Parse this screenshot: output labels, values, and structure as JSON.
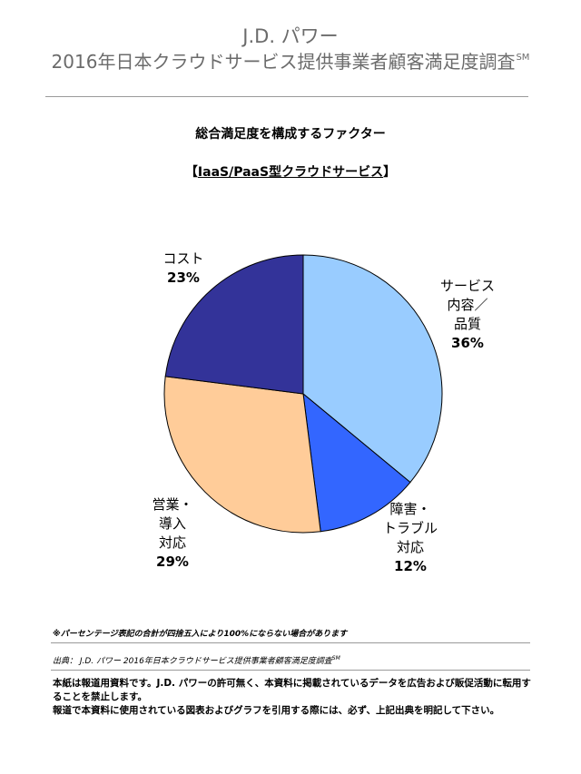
{
  "header": {
    "brand": "J.D. パワー",
    "title": "2016年日本クラウドサービス提供事業者顧客満足度調査",
    "title_mark": "SM"
  },
  "chart_heading": "総合満足度を構成するファクター",
  "chart_subheading": {
    "open": "【",
    "text": "IaaS/PaaS型クラウドサービス",
    "close": "】"
  },
  "chart_data": {
    "type": "pie",
    "title": "",
    "start_angle_deg": 0,
    "direction": "clockwise",
    "slices": [
      {
        "label": "サービス\n内容／\n品質",
        "value": 36,
        "value_label": "36%",
        "color": "#99ccff"
      },
      {
        "label": "障害・\nトラブル\n対応",
        "value": 12,
        "value_label": "12%",
        "color": "#3366ff"
      },
      {
        "label": "営業・\n導入\n対応",
        "value": 29,
        "value_label": "29%",
        "color": "#ffcc99"
      },
      {
        "label": "コスト",
        "value": 23,
        "value_label": "23%",
        "color": "#333399"
      }
    ]
  },
  "footer": {
    "note": "※パーセンテージ表記の合計が四捨五入により100%にならない場合があります",
    "source": "出典： J.D. パワー 2016年日本クラウドサービス提供事業者顧客満足度調査",
    "source_mark": "SM",
    "disclaimer_1": "本紙は報道用資料です。J.D. パワーの許可無く、本資料に掲載されているデータを広告および販促活動に転用することを禁止します。",
    "disclaimer_2": "報道で本資料に使用されている図表およびグラフを引用する際には、必ず、上記出典を明記して下さい。"
  }
}
